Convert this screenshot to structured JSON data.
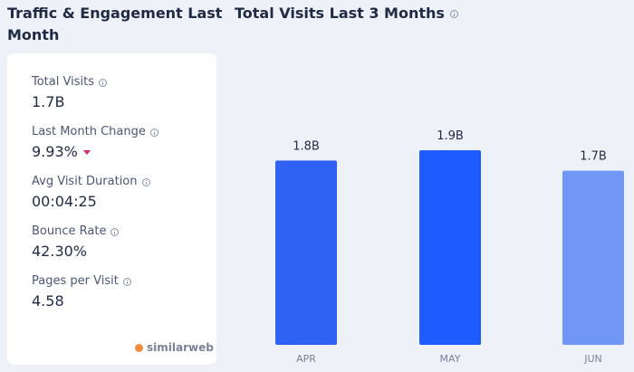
{
  "left_panel": {
    "title": "Traffic & Engagement Last Month",
    "metrics": [
      {
        "label": "Total Visits",
        "value": "1.7B"
      },
      {
        "label": "Last Month Change",
        "value": "9.93%"
      },
      {
        "label": "Avg Visit Duration",
        "value": "00:04:25"
      },
      {
        "label": "Bounce Rate",
        "value": "42.30%"
      },
      {
        "label": "Pages per Visit",
        "value": "4.58"
      }
    ],
    "change_direction": "down",
    "change_color": "#e0245e",
    "logo_text": "similarweb",
    "logo_color": "#f28c38"
  },
  "chart_data": {
    "type": "bar",
    "title": "Total Visits Last 3 Months",
    "categories": [
      "APR",
      "MAY",
      "JUN"
    ],
    "values": [
      1.8,
      1.9,
      1.7
    ],
    "data_labels": [
      "1.8B",
      "1.9B",
      "1.7B"
    ],
    "bar_colors": [
      "#2f62f2",
      "#1f5cff",
      "#7097f5"
    ],
    "ylim": [
      0,
      1.9
    ],
    "grid": false,
    "legend": "none",
    "icons": [
      "info-icon"
    ]
  }
}
